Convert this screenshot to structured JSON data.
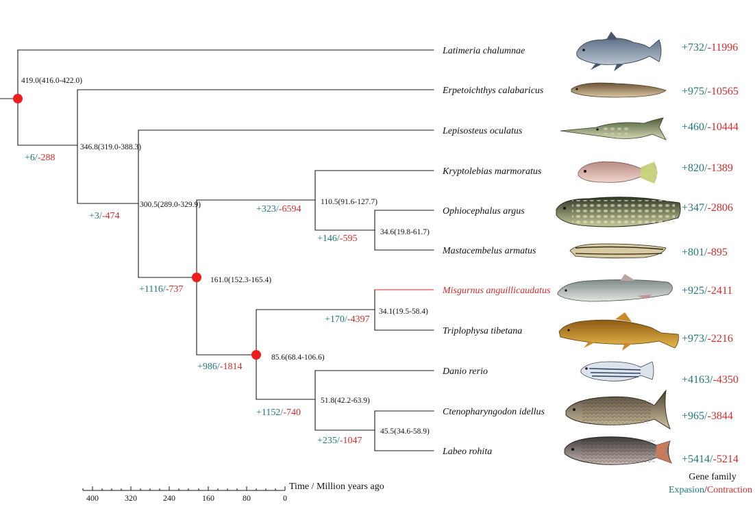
{
  "colors": {
    "branch": "#1a1a1a",
    "expansion": "#1f7a78",
    "contraction": "#d62a2a",
    "node_marker": "#ee1c1c",
    "highlight_taxon": "#d62a2a"
  },
  "taxa": [
    {
      "name": "Latimeria chalumnae",
      "expansion": "+732",
      "contraction": "-11996",
      "highlight": false,
      "icon": "coelacanth-icon"
    },
    {
      "name": "Erpetoichthys calabaricus",
      "expansion": "+975",
      "contraction": "-10565",
      "highlight": false,
      "icon": "reedfish-icon"
    },
    {
      "name": "Lepisosteus oculatus",
      "expansion": "+460",
      "contraction": "-10444",
      "highlight": false,
      "icon": "gar-icon"
    },
    {
      "name": "Kryptolebias marmoratus",
      "expansion": "+820",
      "contraction": "-1389",
      "highlight": false,
      "icon": "killifish-icon"
    },
    {
      "name": "Ophiocephalus argus",
      "expansion": "+347",
      "contraction": "-2806",
      "highlight": false,
      "icon": "snakehead-icon"
    },
    {
      "name": "Mastacembelus armatus",
      "expansion": "+801",
      "contraction": "-895",
      "highlight": false,
      "icon": "spiny-eel-icon"
    },
    {
      "name": "Misgurnus anguillicaudatus",
      "expansion": "+925",
      "contraction": "-2411",
      "highlight": true,
      "icon": "loach-icon"
    },
    {
      "name": "Triplophysa tibetana",
      "expansion": "+973",
      "contraction": "-2216",
      "highlight": false,
      "icon": "stone-loach-icon"
    },
    {
      "name": "Danio rerio",
      "expansion": "+4163",
      "contraction": "-4350",
      "highlight": false,
      "icon": "zebrafish-icon"
    },
    {
      "name": "Ctenopharyngodon idellus",
      "expansion": "+965",
      "contraction": "-3844",
      "highlight": false,
      "icon": "grass-carp-icon"
    },
    {
      "name": "Labeo rohita",
      "expansion": "+5414",
      "contraction": "-5214",
      "highlight": false,
      "icon": "rohu-icon"
    }
  ],
  "nodes": [
    {
      "id": "root",
      "age": "419.0(416.0-422.0)",
      "expansion": "+6",
      "contraction": "-288",
      "calibration": true
    },
    {
      "id": "actinopterygii",
      "age": "346.8(319.0-388.3)",
      "expansion": "+3",
      "contraction": "-474",
      "calibration": false
    },
    {
      "id": "neopterygii",
      "age": "300.5(289.0-329.9)",
      "expansion": "",
      "contraction": "",
      "calibration": false
    },
    {
      "id": "percomorpha",
      "age": "110.5(91.6-127.7)",
      "expansion": "+323",
      "contraction": "-6594",
      "calibration": false
    },
    {
      "id": "snakehead-spiny-eel",
      "age": "34.6(19.8-61.7)",
      "expansion": "+146",
      "contraction": "-595",
      "calibration": false
    },
    {
      "id": "teleost-split",
      "age": "161.0(152.3-165.4)",
      "expansion": "+1116",
      "contraction": "-737",
      "calibration": true
    },
    {
      "id": "cypriniformes",
      "age": "85.6(68.4-106.6)",
      "expansion": "+986",
      "contraction": "-1814",
      "calibration": true
    },
    {
      "id": "loaches",
      "age": "34.1(19.5-58.4)",
      "expansion": "+170",
      "contraction": "-4397",
      "calibration": false
    },
    {
      "id": "cyprinidae",
      "age": "51.8(42.2-63.9)",
      "expansion": "+1152",
      "contraction": "-740",
      "calibration": false
    },
    {
      "id": "carps",
      "age": "45.5(34.6-58.9)",
      "expansion": "+235",
      "contraction": "-1047",
      "calibration": false
    }
  ],
  "time_axis": {
    "label": "Time / Million years ago",
    "ticks": [
      "400",
      "320",
      "240",
      "160",
      "80",
      "0"
    ]
  },
  "legend": {
    "title": "Gene family",
    "expansion_label": "Expasion",
    "separator": "/",
    "contraction_label": "Contraction"
  }
}
